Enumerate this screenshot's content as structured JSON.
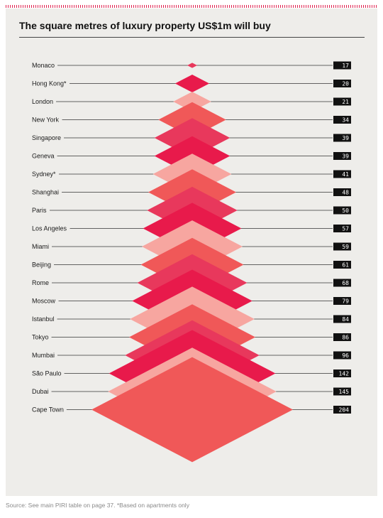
{
  "chart_data": {
    "type": "bar",
    "title": "The square metres of luxury property US$1m will buy",
    "categories": [
      "Monaco",
      "Hong Kong*",
      "London",
      "New York",
      "Singapore",
      "Geneva",
      "Sydney*",
      "Shanghai",
      "Paris",
      "Los Angeles",
      "Miami",
      "Beijing",
      "Rome",
      "Moscow",
      "Istanbul",
      "Tokyo",
      "Mumbai",
      "São Paulo",
      "Dubai",
      "Cape Town"
    ],
    "values": [
      17,
      20,
      21,
      34,
      39,
      39,
      41,
      48,
      50,
      57,
      59,
      61,
      68,
      79,
      84,
      86,
      96,
      142,
      145,
      204
    ],
    "value_labels": [
      "17",
      "20",
      "21",
      "34",
      "39",
      "39",
      "41",
      "48",
      "50",
      "57",
      "59",
      "61",
      "68",
      "79",
      "84",
      "86",
      "96",
      "142",
      "145",
      "204"
    ],
    "unit": "square metres",
    "style": "stacked diamonds (pyramid)"
  },
  "colors": {
    "palette": [
      "#e8385c",
      "#e81a4b",
      "#f7a6a0",
      "#f05858"
    ],
    "panel_background": "#eeedea",
    "value_box": "#111111",
    "leader_line": "#333333",
    "accent_stripe": "#e0214f"
  },
  "source_note": "Source: See main PIRI table on page 37. *Based on apartments only"
}
